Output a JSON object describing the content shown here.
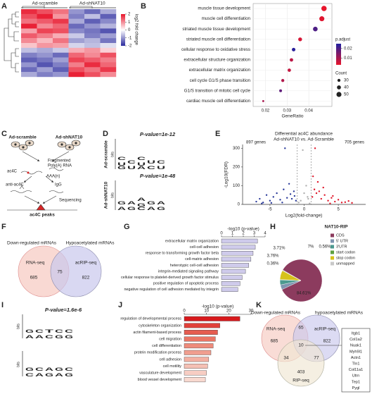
{
  "panel_labels": [
    "A",
    "B",
    "C",
    "D",
    "E",
    "F",
    "G",
    "H",
    "I",
    "J",
    "K"
  ],
  "heatmap": {
    "groups": [
      "Ad-scramble",
      "Ad-shNAT10"
    ],
    "legend_title": "log2 fold change",
    "legend_ticks": [
      2,
      1,
      0,
      -1,
      -2
    ],
    "lim": [
      -2,
      2
    ],
    "color_low": "#2b2b9e",
    "color_mid": "#ffffff",
    "color_high": "#e8152b",
    "values": [
      [
        1.8,
        1.5,
        1.2,
        -1.0,
        -1.4,
        -0.8
      ],
      [
        1.5,
        1.9,
        0.9,
        -1.2,
        -0.6,
        -1.5
      ],
      [
        1.2,
        1.4,
        1.7,
        -0.8,
        -1.5,
        -1.1
      ],
      [
        1.9,
        1.0,
        1.3,
        -1.4,
        -1.0,
        -0.7
      ],
      [
        0.8,
        1.6,
        1.5,
        -1.1,
        -1.3,
        -1.6
      ],
      [
        1.4,
        1.1,
        0.7,
        -0.5,
        -1.2,
        -0.9
      ],
      [
        1.0,
        0.6,
        1.2,
        -0.9,
        -0.7,
        -1.3
      ],
      [
        0.5,
        0.9,
        0.8,
        -0.4,
        -0.6,
        -0.3
      ],
      [
        -0.6,
        -0.8,
        -0.5,
        0.7,
        0.9,
        0.4
      ],
      [
        -1.2,
        -1.0,
        -1.4,
        1.3,
        1.0,
        1.5
      ],
      [
        -1.5,
        -1.3,
        -0.9,
        1.6,
        1.4,
        1.1
      ],
      [
        -1.0,
        -1.6,
        -1.2,
        1.1,
        1.8,
        1.3
      ],
      [
        -1.4,
        -0.9,
        -1.5,
        1.5,
        1.2,
        1.7
      ],
      [
        -0.8,
        -1.2,
        -1.0,
        1.9,
        1.5,
        1.0
      ]
    ]
  },
  "go_dotplot": {
    "type": "scatter",
    "categories": [
      "muscle tissue development",
      "muscle cell differentiation",
      "striated muscle tissue development",
      "striated muscle cell differentiation",
      "cellular response to oxidative stress",
      "extracellular structure organization",
      "extracellular matrix organization",
      "cell cycle G1/S phase transition",
      "G1/S transition of mitotic cell cycle",
      "cardiac muscle cell differentiation"
    ],
    "x": [
      0.047,
      0.046,
      0.043,
      0.036,
      0.033,
      0.032,
      0.031,
      0.028,
      0.027,
      0.019
    ],
    "p_adjust": [
      0.003,
      0.004,
      0.02,
      0.005,
      0.024,
      0.008,
      0.007,
      0.009,
      0.018,
      0.01
    ],
    "count": [
      53,
      50,
      46,
      38,
      35,
      34,
      33,
      30,
      28,
      20
    ],
    "xlim": [
      0.015,
      0.05
    ],
    "xticks": [
      0.02,
      0.03,
      0.04
    ],
    "xlabel": "GeneRatio",
    "color_legend_title": "p.adjust",
    "color_ticks": [
      0.02,
      0.01
    ],
    "color_lim": [
      0.003,
      0.025
    ],
    "color_low": "#e8152b",
    "color_high": "#2020a0",
    "size_legend_title": "Count",
    "size_ticks": [
      30,
      40,
      50
    ]
  },
  "schematic": {
    "left_group": "Ad-scramble",
    "right_group": "Ad-shNAT10",
    "fragment_lines": [
      "Fragmented",
      "Poly(A) RNA"
    ],
    "ac4c": "ac4C",
    "polya": "AAA(n)",
    "antibody": "anti-ac4C",
    "igg": "IgG",
    "sequencing": "Sequencing",
    "result": "ac4C peaks"
  },
  "motifs_d": {
    "bits": "bits",
    "letter_colors": {
      "A": "#2e9a3a",
      "C": "#2a4fbf",
      "G": "#f0a000",
      "U": "#d62728",
      "T": "#d62728"
    },
    "items": [
      {
        "name": "Ad-scramble",
        "p_value": "P-value=1e-12",
        "stacks": [
          [
            "C",
            "U",
            "G"
          ],
          [
            "C",
            "U"
          ],
          [
            "C",
            "U",
            "A"
          ],
          [
            "U",
            "C"
          ],
          [
            "C",
            "U"
          ]
        ]
      },
      {
        "name": "Ad-shNAT10",
        "p_value": "P-value=1e-48",
        "stacks": [
          [
            "G",
            "A"
          ],
          [
            "A",
            "G"
          ],
          [
            "A",
            "G",
            "C"
          ],
          [
            "G",
            "A"
          ],
          [
            "A",
            "G"
          ]
        ]
      }
    ]
  },
  "volcano": {
    "type": "scatter",
    "title": [
      "Differential ac4C abundance",
      "Ad-shNAT10 vs. Ad-Scramble"
    ],
    "xlabel": "Log2(fold-change)",
    "ylabel": "-Log10(FDR)",
    "xlim": [
      -9,
      9
    ],
    "xticks": [
      -5,
      0,
      5
    ],
    "ylim": [
      0,
      320
    ],
    "yticks": [
      0,
      100,
      200,
      300
    ],
    "vlines": [
      -1,
      1
    ],
    "series": [
      {
        "name": "897 genes",
        "color": "#2a3a9a",
        "x": [
          -7,
          -6.5,
          -6,
          -5.5,
          -5,
          -4.5,
          -4,
          -3.5,
          -3,
          -2.5,
          -2,
          -1.5,
          -1.2,
          -3.2,
          -4.8,
          -2.2,
          -1.8,
          -6.2,
          -2.8,
          -1.4
        ],
        "values": [
          15,
          30,
          10,
          50,
          20,
          40,
          60,
          25,
          80,
          35,
          55,
          70,
          20,
          10,
          8,
          110,
          30,
          5,
          300,
          45
        ]
      },
      {
        "name": "705 genes",
        "color": "#e0182b",
        "x": [
          1.2,
          1.5,
          1.8,
          2,
          2.5,
          3,
          3.5,
          4,
          4.5,
          5,
          5.5,
          6,
          7,
          1.3,
          2.2,
          2.8,
          3.8,
          1.6,
          4.2,
          6.5
        ],
        "values": [
          40,
          80,
          60,
          120,
          30,
          50,
          20,
          35,
          15,
          25,
          10,
          12,
          8,
          150,
          70,
          90,
          5,
          300,
          45,
          18
        ]
      },
      {
        "color": "#b0b0b0",
        "x": [
          -0.5,
          0,
          0.5,
          -0.8,
          0.3,
          0.8,
          -0.2,
          0.6
        ],
        "values": [
          20,
          60,
          40,
          10,
          100,
          5,
          290,
          30
        ]
      }
    ]
  },
  "venn_f": {
    "titles": [
      "Down-regulated mRNAs",
      "Hypoacetylated mRNAs"
    ],
    "sets": [
      "RNA-seq",
      "acRIP-seq"
    ],
    "counts": [
      685,
      75,
      822
    ]
  },
  "go_bar_g": {
    "type": "bar",
    "title": "-log10 (p-value)",
    "xlim": [
      0,
      4
    ],
    "xticks": [
      0,
      1,
      2,
      3,
      4
    ],
    "color": "#cfcbeb",
    "categories": [
      "extracellular matrix organization",
      "cell-cell adhesion",
      "response to transforming growth factor beta",
      "cell-matrix adhesion",
      "heterotypic cell-cell adhesion",
      "integrin-mediated signaling pathway",
      "cellular response to platelet-derived growth factor stimulus",
      "positive regulation of apoptotic process",
      "negative regulation of cell adhesion mediated by integrin"
    ],
    "values": [
      3.3,
      3.1,
      2.9,
      2.7,
      2.5,
      2.2,
      1.9,
      1.7,
      1.5
    ]
  },
  "pie_h": {
    "type": "pie",
    "title": "NAT10-RIP",
    "categories": [
      "CDS",
      "5' UTR",
      "3'UTR",
      "start codon",
      "stop codon",
      "unmapped"
    ],
    "values": [
      84.61,
      3.71,
      3.76,
      0.36,
      7,
      0.56
    ],
    "value_labels": [
      "84.61%",
      "3.71%",
      "3.76%",
      "0.36%",
      "7%",
      "0.56%"
    ],
    "colors": [
      "#8c3b5e",
      "#7f95b0",
      "#4c9a90",
      "#5ea040",
      "#d6c21c",
      "#c8c8c8"
    ]
  },
  "motifs_i": {
    "p_value": "P-value=1.6e-6",
    "bits": "bits",
    "letter_colors": {
      "A": "#2e9a3a",
      "C": "#2a4fbf",
      "G": "#f0a000",
      "U": "#d62728",
      "T": "#d62728"
    },
    "items": [
      [
        [
          "G",
          "A"
        ],
        [
          "C",
          "A"
        ],
        [
          "T",
          "C"
        ],
        [
          "C",
          "G"
        ],
        [
          "C",
          "G"
        ]
      ],
      [
        [
          "G",
          "C"
        ],
        [
          "C",
          "A"
        ],
        [
          "A",
          "G"
        ],
        [
          "G",
          "A"
        ],
        [
          "C",
          "G"
        ]
      ]
    ]
  },
  "go_bar_j": {
    "type": "bar",
    "title": "-log10 (p-value)",
    "xlim": [
      0,
      30
    ],
    "xticks": [
      0,
      10,
      20,
      30
    ],
    "categories": [
      "regulation of developmental process",
      "cytoskeleton organization",
      "actin filament-based process",
      "cell migration",
      "cell differentiation",
      "protein modification process",
      "cell adhesion",
      "cell motility",
      "vasculature development",
      "blood vessel development"
    ],
    "values": [
      25,
      16,
      15,
      14,
      13,
      12,
      11,
      10.5,
      10,
      9.5
    ],
    "colors": [
      "#d7191c",
      "#e0413a",
      "#e65c50",
      "#ea7565",
      "#ee8b7b",
      "#f09e8f",
      "#f3b0a2",
      "#f5c0b4",
      "#f7cdc3",
      "#f9d9d0"
    ]
  },
  "venn_k": {
    "titles": [
      "Down-regulated mRNAs",
      "hypoacetylated mRNAs"
    ],
    "sets": [
      "RNA-seq",
      "acRIP-seq",
      "RIP-seq"
    ],
    "counts": [
      685,
      65,
      822,
      10,
      34,
      77,
      403
    ],
    "genes": [
      "Itgb1",
      "Col1a2",
      "Nuak1",
      "Myh9l1",
      "Actn1",
      "Tln1",
      "Col11a1",
      "Utrn",
      "Tep1",
      "Pygl"
    ]
  }
}
